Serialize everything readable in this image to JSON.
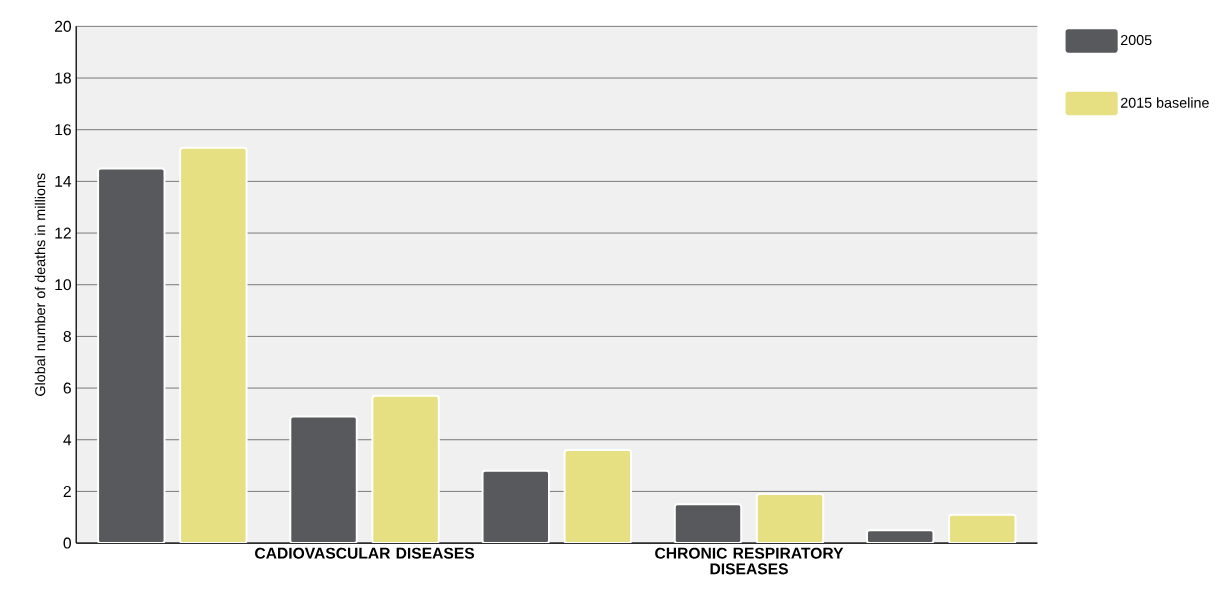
{
  "chart_data": {
    "type": "bar",
    "ylabel": "Global number of deaths in millions",
    "categories": [
      null,
      "CADIOVASCULAR DISEASES",
      null,
      "CHRONIC RESPIRATORY DISEASES",
      null
    ],
    "series": [
      {
        "name": "2005",
        "color": "#58595d",
        "values": [
          14.5,
          4.9,
          2.8,
          1.5,
          0.5
        ]
      },
      {
        "name": "2015 baseline",
        "color": "#e6e083",
        "values": [
          15.3,
          5.7,
          3.6,
          1.9,
          1.1
        ]
      }
    ],
    "ylim": [
      0,
      20
    ],
    "yticks": [
      0,
      2,
      4,
      6,
      8,
      10,
      12,
      14,
      16,
      18,
      20
    ],
    "grid": "y",
    "legend": "right"
  }
}
